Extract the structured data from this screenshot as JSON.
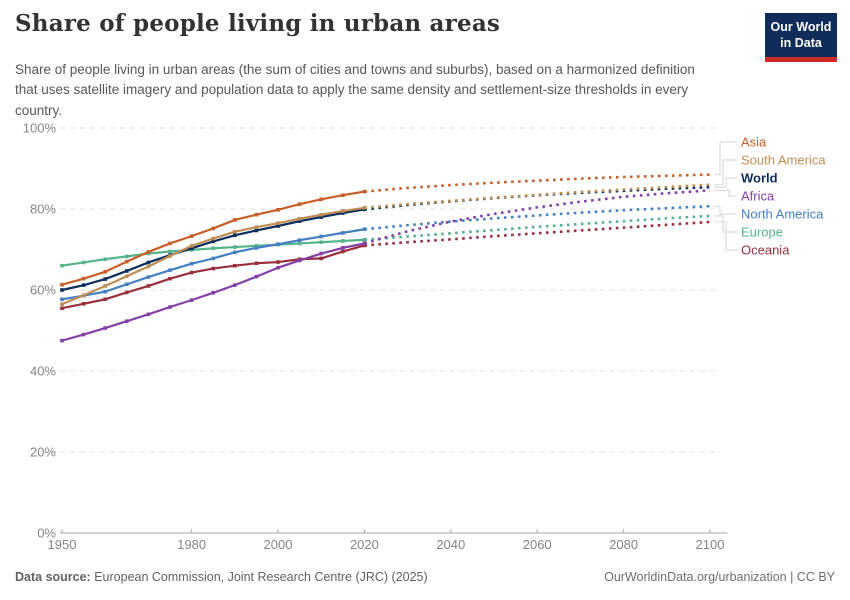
{
  "header": {
    "title": "Share of people living in urban areas",
    "subtitle": "Share of people living in urban areas (the sum of cities and towns and suburbs), based on a harmonized definition that uses satellite imagery and population data to apply the same density and settlement-size thresholds in every country.",
    "logo": {
      "line1": "Our World",
      "line2": "in Data",
      "bg_color": "#102d59",
      "accent_color": "#cc2a24"
    }
  },
  "footer": {
    "source_label": "Data source:",
    "source_text": " European Commission, Joint Research Centre (JRC) (2025)",
    "credit": "OurWorldinData.org/urbanization | CC BY"
  },
  "chart_data": {
    "type": "line",
    "title": "Share of people living in urban areas",
    "unit": "%",
    "xlabel": "",
    "ylabel": "",
    "ylim": [
      0,
      100
    ],
    "xlim": [
      1948,
      2104
    ],
    "grid": true,
    "legend_position": "right",
    "projection_start_year": 2020,
    "projection_style": "dotted",
    "x_ticks": [
      1950,
      1980,
      2000,
      2020,
      2040,
      2060,
      2080,
      2100
    ],
    "y_ticks": [
      0,
      20,
      40,
      60,
      80,
      100
    ],
    "y_tick_suffix": "%",
    "historical_years": [
      1950,
      1955,
      1960,
      1965,
      1970,
      1975,
      1980,
      1985,
      1990,
      1995,
      2000,
      2005,
      2010,
      2015,
      2020
    ],
    "projection_years": [
      2020,
      2030,
      2040,
      2050,
      2060,
      2070,
      2080,
      2090,
      2100
    ],
    "series": [
      {
        "name": "Asia",
        "color": "#c95f28",
        "bold": false,
        "historical": [
          61.3,
          62.8,
          64.5,
          67.0,
          69.4,
          71.5,
          73.3,
          75.2,
          77.3,
          78.6,
          79.8,
          81.2,
          82.4,
          83.4,
          84.3
        ],
        "projection": [
          84.3,
          85.2,
          85.9,
          86.5,
          87.0,
          87.5,
          87.9,
          88.2,
          88.5
        ]
      },
      {
        "name": "South America",
        "color": "#bf8e54",
        "bold": false,
        "historical": [
          56.5,
          58.7,
          61.0,
          63.4,
          65.8,
          68.4,
          70.9,
          72.7,
          74.4,
          75.5,
          76.5,
          77.6,
          78.6,
          79.5,
          80.3
        ],
        "projection": [
          80.3,
          81.2,
          82.0,
          82.8,
          83.5,
          84.2,
          84.8,
          85.4,
          86.0
        ]
      },
      {
        "name": "World",
        "color": "#0a2e5c",
        "bold": true,
        "historical": [
          60.0,
          61.2,
          62.7,
          64.7,
          66.8,
          68.6,
          70.3,
          72.0,
          73.5,
          74.7,
          75.8,
          77.0,
          78.0,
          79.0,
          79.9
        ],
        "projection": [
          79.9,
          81.0,
          81.9,
          82.7,
          83.4,
          84.0,
          84.5,
          85.0,
          85.4
        ]
      },
      {
        "name": "Africa",
        "color": "#8340a8",
        "bold": false,
        "historical": [
          47.5,
          49.0,
          50.6,
          52.3,
          54.0,
          55.8,
          57.5,
          59.3,
          61.2,
          63.3,
          65.5,
          67.3,
          69.0,
          70.4,
          71.5
        ],
        "projection": [
          71.5,
          74.5,
          76.9,
          78.8,
          80.4,
          81.8,
          83.0,
          83.9,
          84.6
        ]
      },
      {
        "name": "North America",
        "color": "#4580c4",
        "bold": false,
        "historical": [
          57.7,
          58.6,
          59.6,
          61.4,
          63.2,
          64.9,
          66.5,
          67.8,
          69.3,
          70.4,
          71.3,
          72.3,
          73.2,
          74.1,
          75.0
        ],
        "projection": [
          75.0,
          76.0,
          76.9,
          77.7,
          78.4,
          79.1,
          79.7,
          80.2,
          80.7
        ]
      },
      {
        "name": "Europe",
        "color": "#55b38a",
        "bold": false,
        "historical": [
          66.0,
          66.8,
          67.6,
          68.3,
          69.0,
          69.5,
          69.9,
          70.3,
          70.6,
          70.9,
          71.2,
          71.5,
          71.8,
          72.1,
          72.4
        ],
        "projection": [
          72.4,
          73.2,
          74.0,
          74.8,
          75.6,
          76.3,
          77.0,
          77.7,
          78.3
        ]
      },
      {
        "name": "Oceania",
        "color": "#992f3d",
        "bold": false,
        "historical": [
          55.5,
          56.6,
          57.7,
          59.4,
          61.0,
          62.8,
          64.3,
          65.3,
          66.0,
          66.6,
          66.9,
          67.6,
          67.8,
          69.5,
          71.0
        ],
        "projection": [
          71.0,
          71.8,
          72.5,
          73.3,
          74.0,
          74.7,
          75.4,
          76.1,
          76.8
        ]
      }
    ],
    "style": {
      "grid_color": "#e2e2e2",
      "axis_color": "#a5a5a5",
      "tick_label_color": "#858585",
      "connector_color": "#dcdcdc"
    }
  }
}
